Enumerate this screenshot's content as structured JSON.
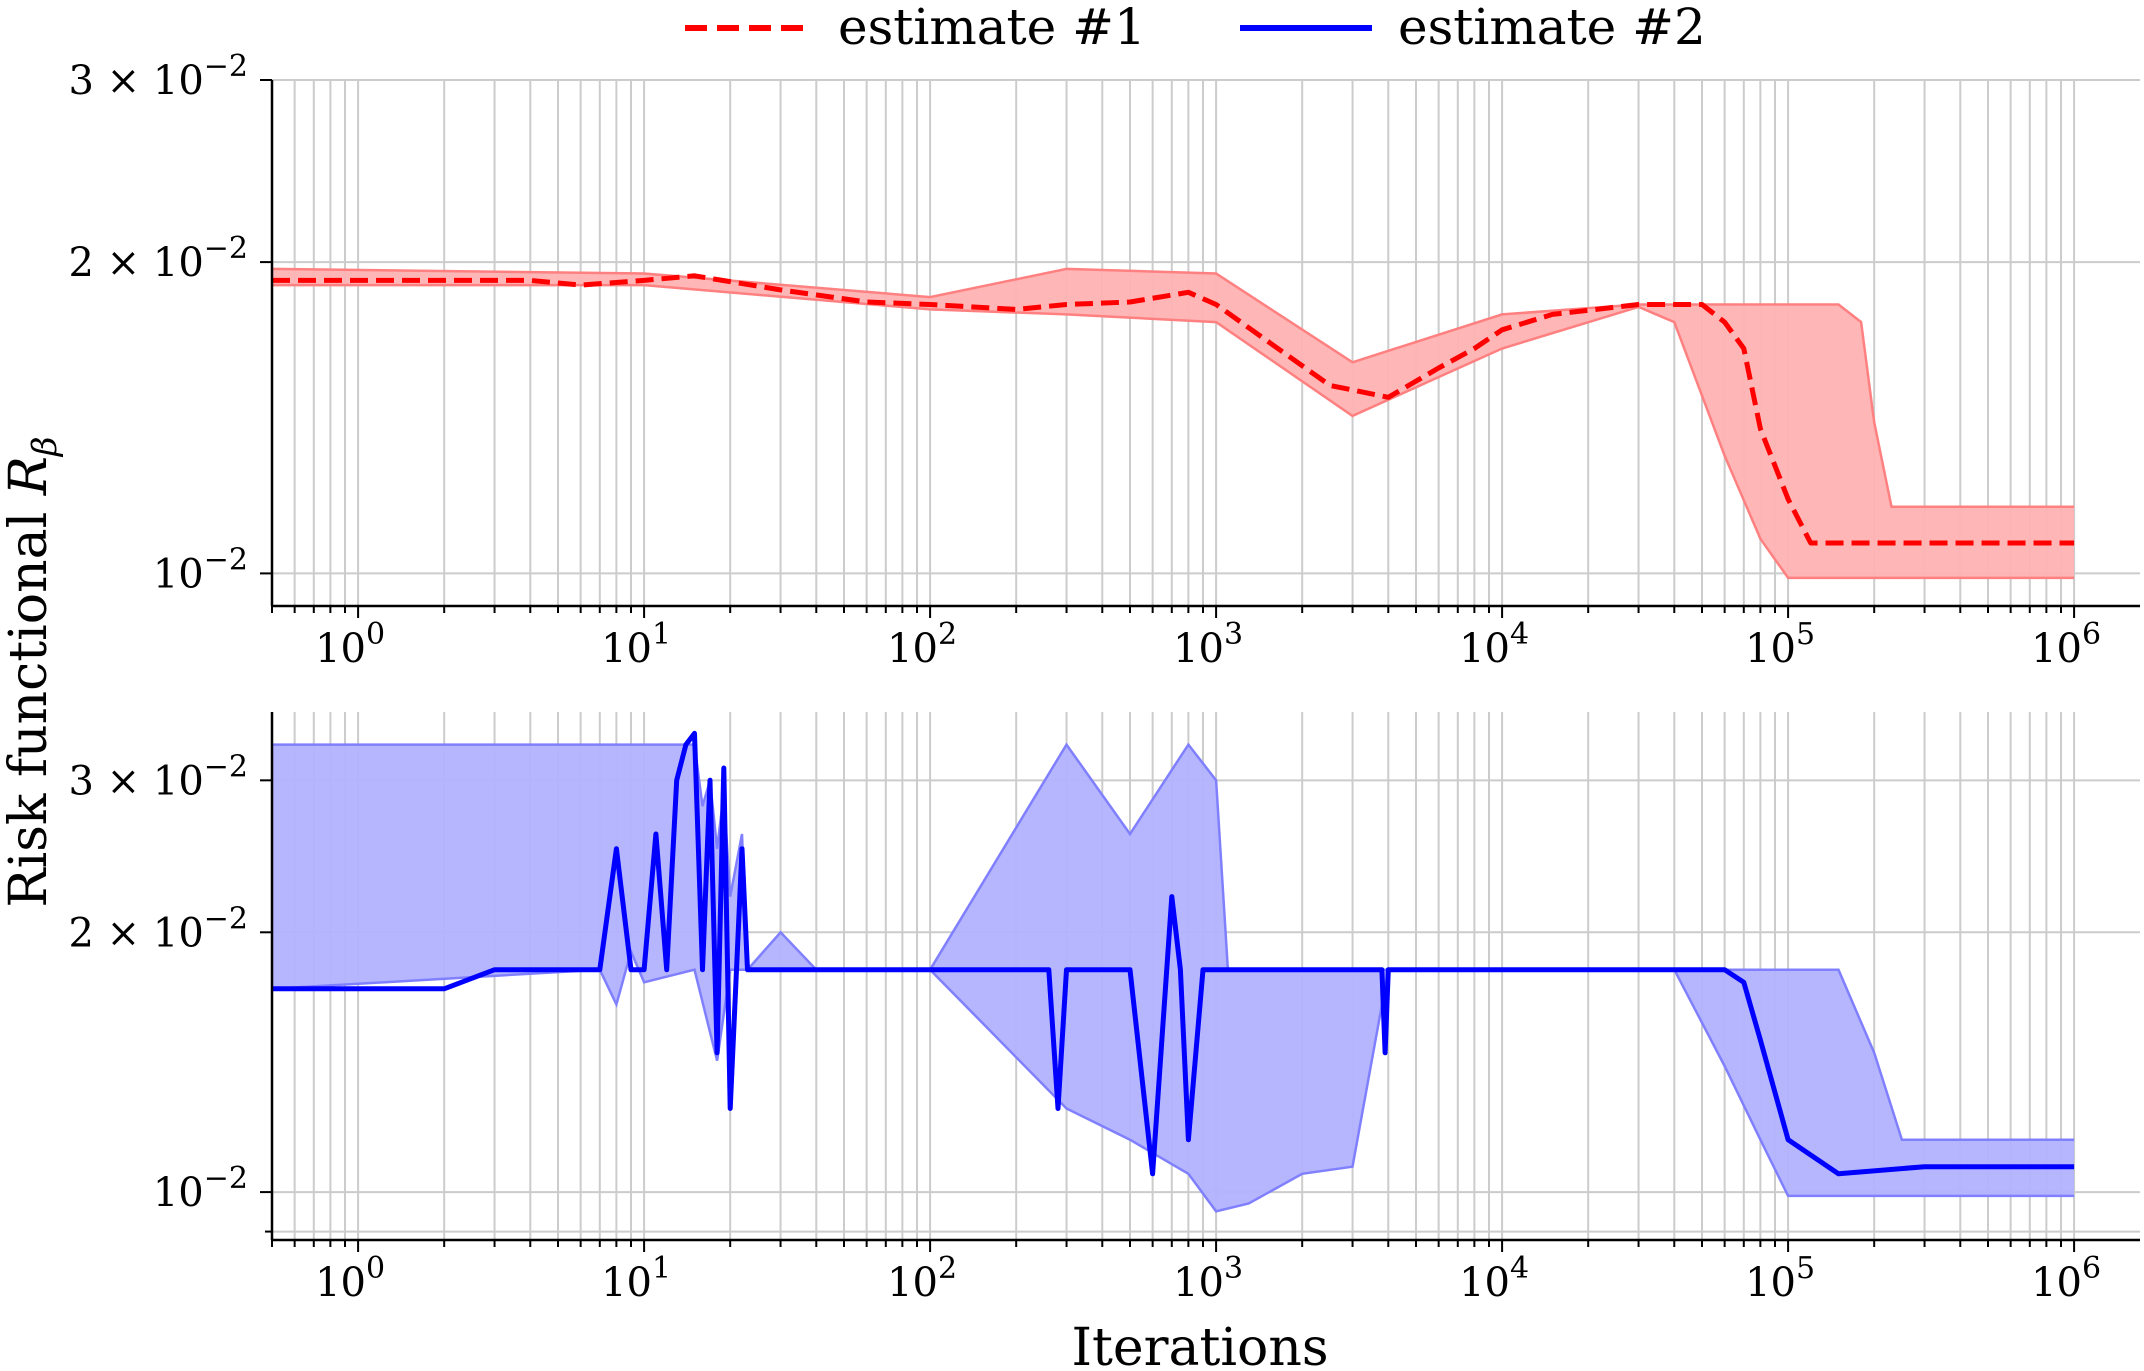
{
  "legend": [
    {
      "label": "estimate #1",
      "color": "#ff0000",
      "style": "dashed"
    },
    {
      "label": "estimate #2",
      "color": "#0000ff",
      "style": "solid"
    }
  ],
  "xlabel": "Iterations",
  "ylabel_prefix": "Risk functional ",
  "ylabel_symbol": "R",
  "ylabel_subscript": "β",
  "chart_data": [
    {
      "type": "line",
      "x_scale": "log",
      "y_scale": "log",
      "xlim": [
        0.5,
        1700000
      ],
      "ylim": [
        0.0093,
        0.03
      ],
      "grid": true,
      "legend_position": "top-center",
      "x_tick_labels": [
        {
          "value": 1,
          "base": "10",
          "exp": "0"
        },
        {
          "value": 10,
          "base": "10",
          "exp": "1"
        },
        {
          "value": 100,
          "base": "10",
          "exp": "2"
        },
        {
          "value": 1000,
          "base": "10",
          "exp": "3"
        },
        {
          "value": 10000,
          "base": "10",
          "exp": "4"
        },
        {
          "value": 100000,
          "base": "10",
          "exp": "5"
        },
        {
          "value": 1000000,
          "base": "10",
          "exp": "6"
        }
      ],
      "y_tick_labels": [
        {
          "value": 0.03,
          "mant": "3 × 10",
          "exp": "−2"
        },
        {
          "value": 0.02,
          "mant": "2 × 10",
          "exp": "−2"
        },
        {
          "value": 0.01,
          "mant": "10",
          "exp": "−2"
        }
      ],
      "series": [
        {
          "name": "estimate #1",
          "color": "#ff0000",
          "style": "dashed",
          "x": [
            0.5,
            1,
            2,
            4,
            6,
            10,
            15,
            30,
            60,
            100,
            200,
            300,
            500,
            800,
            1000,
            1500,
            2500,
            4000,
            6000,
            8000,
            10000,
            15000,
            30000,
            50000,
            60000,
            70000,
            80000,
            100000,
            120000,
            200000,
            400000,
            1000000
          ],
          "y": [
            0.0192,
            0.0192,
            0.0192,
            0.0192,
            0.019,
            0.0192,
            0.0194,
            0.0188,
            0.0183,
            0.0182,
            0.018,
            0.0182,
            0.0183,
            0.0187,
            0.0182,
            0.0168,
            0.0152,
            0.0148,
            0.0158,
            0.0165,
            0.0172,
            0.0178,
            0.0182,
            0.0182,
            0.0175,
            0.0165,
            0.0138,
            0.0118,
            0.0107,
            0.0107,
            0.0107,
            0.0107
          ]
        },
        {
          "name": "band upper",
          "color": "#ffb2b2",
          "x": [
            0.5,
            10,
            100,
            300,
            1000,
            3000,
            10000,
            30000,
            50000,
            100000,
            150000,
            180000,
            200000,
            230000,
            1000000
          ],
          "y": [
            0.0197,
            0.0195,
            0.0185,
            0.0197,
            0.0195,
            0.016,
            0.0178,
            0.0182,
            0.0182,
            0.0182,
            0.0182,
            0.0175,
            0.014,
            0.0116,
            0.0116
          ]
        },
        {
          "name": "band lower",
          "color": "#ffb2b2",
          "x": [
            0.5,
            10,
            100,
            300,
            1000,
            3000,
            10000,
            30000,
            40000,
            60000,
            80000,
            100000,
            1000000
          ],
          "y": [
            0.019,
            0.019,
            0.018,
            0.0178,
            0.0175,
            0.0142,
            0.0165,
            0.0181,
            0.0175,
            0.013,
            0.0108,
            0.0099,
            0.0099
          ]
        }
      ]
    },
    {
      "type": "line",
      "x_scale": "log",
      "y_scale": "log",
      "xlim": [
        0.5,
        1700000
      ],
      "ylim": [
        0.0088,
        0.036
      ],
      "grid": true,
      "x_tick_labels": [
        {
          "value": 1,
          "base": "10",
          "exp": "0"
        },
        {
          "value": 10,
          "base": "10",
          "exp": "1"
        },
        {
          "value": 100,
          "base": "10",
          "exp": "2"
        },
        {
          "value": 1000,
          "base": "10",
          "exp": "3"
        },
        {
          "value": 10000,
          "base": "10",
          "exp": "4"
        },
        {
          "value": 100000,
          "base": "10",
          "exp": "5"
        },
        {
          "value": 1000000,
          "base": "10",
          "exp": "6"
        }
      ],
      "y_tick_labels": [
        {
          "value": 0.03,
          "mant": "3 × 10",
          "exp": "−2"
        },
        {
          "value": 0.02,
          "mant": "2 × 10",
          "exp": "−2"
        },
        {
          "value": 0.01,
          "mant": "10",
          "exp": "−2"
        }
      ],
      "series": [
        {
          "name": "estimate #2",
          "color": "#0000ff",
          "style": "solid",
          "x": [
            0.5,
            2,
            3,
            7,
            8,
            9,
            10,
            11,
            12,
            13,
            14,
            15,
            16,
            17,
            18,
            19,
            20,
            22,
            23,
            30,
            100,
            260,
            280,
            300,
            500,
            600,
            700,
            750,
            800,
            900,
            1000,
            2000,
            3800,
            3900,
            4000,
            10000,
            60000,
            70000,
            80000,
            100000,
            150000,
            300000,
            1000000
          ],
          "y": [
            0.0172,
            0.0172,
            0.0181,
            0.0181,
            0.025,
            0.0181,
            0.0181,
            0.026,
            0.0181,
            0.03,
            0.033,
            0.034,
            0.0181,
            0.03,
            0.0145,
            0.031,
            0.0125,
            0.025,
            0.0181,
            0.0181,
            0.0181,
            0.0181,
            0.0125,
            0.0181,
            0.0181,
            0.0105,
            0.022,
            0.0181,
            0.0115,
            0.0181,
            0.0181,
            0.0181,
            0.0181,
            0.0145,
            0.0181,
            0.0181,
            0.0181,
            0.0175,
            0.015,
            0.0115,
            0.0105,
            0.0107,
            0.0107
          ]
        },
        {
          "name": "band upper",
          "color": "#b2b2ff",
          "x": [
            0.5,
            15,
            16,
            17,
            18,
            19,
            20,
            22,
            23,
            30,
            40,
            100,
            300,
            500,
            800,
            1000,
            1100,
            10000,
            60000,
            150000,
            200000,
            250000,
            1000000
          ],
          "y": [
            0.033,
            0.033,
            0.028,
            0.03,
            0.025,
            0.029,
            0.022,
            0.026,
            0.0181,
            0.02,
            0.0181,
            0.0181,
            0.033,
            0.026,
            0.033,
            0.03,
            0.0181,
            0.0181,
            0.0181,
            0.0181,
            0.0145,
            0.0115,
            0.0115
          ]
        },
        {
          "name": "band lower",
          "color": "#b2b2ff",
          "x": [
            0.5,
            7,
            8,
            9,
            10,
            15,
            18,
            20,
            22,
            30,
            100,
            300,
            500,
            800,
            1000,
            1300,
            2000,
            3000,
            4000,
            10000,
            40000,
            60000,
            80000,
            100000,
            1000000
          ],
          "y": [
            0.0172,
            0.0181,
            0.0165,
            0.019,
            0.0175,
            0.0181,
            0.0142,
            0.0181,
            0.0181,
            0.0181,
            0.0181,
            0.0125,
            0.0115,
            0.0105,
            0.0095,
            0.0097,
            0.0105,
            0.0107,
            0.0181,
            0.0181,
            0.0181,
            0.014,
            0.0115,
            0.0099,
            0.0099
          ]
        }
      ]
    }
  ]
}
